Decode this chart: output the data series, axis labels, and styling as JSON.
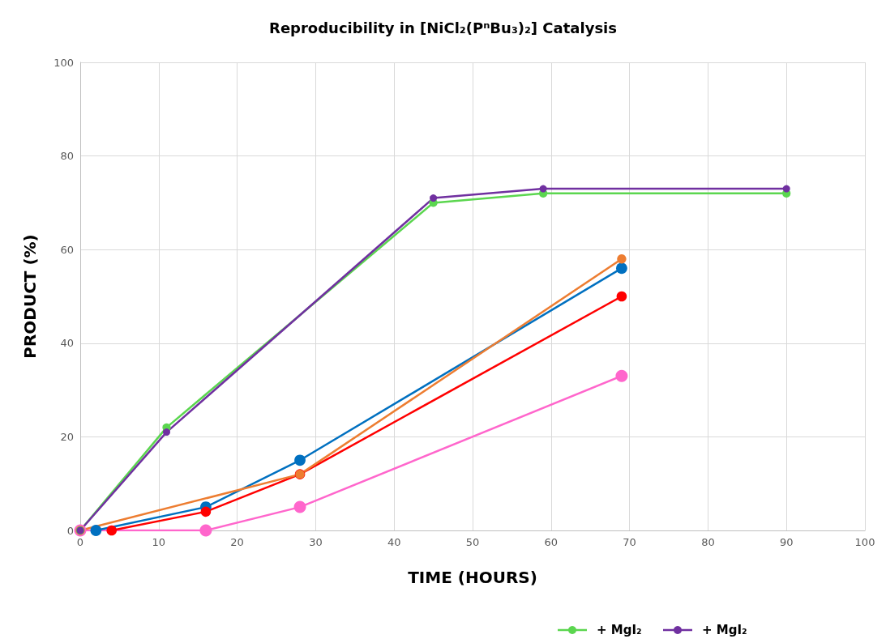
{
  "chart_data": {
    "type": "line",
    "title": "Reproducibility in [NiCl₂(PⁿBu₃)₂] Catalysis",
    "xlabel": "TIME (HOURS)",
    "ylabel": "PRODUCT (%)",
    "xlim": [
      0,
      100
    ],
    "xticks": [
      0,
      10,
      20,
      30,
      40,
      50,
      60,
      70,
      80,
      90,
      100
    ],
    "ylim": [
      0,
      100
    ],
    "yticks": [
      0,
      20,
      40,
      60,
      80,
      100
    ],
    "grid": true,
    "marker": "circle",
    "line_style": "solid",
    "legend": "bottom",
    "series": [
      {
        "color": "#ff66cc",
        "x": [
          0,
          16,
          28,
          69
        ],
        "values": [
          0,
          0,
          5,
          33
        ]
      },
      {
        "color": "#0070c0",
        "x": [
          2,
          16,
          28,
          69
        ],
        "values": [
          0,
          5,
          15,
          56
        ]
      },
      {
        "color": "#ff0000",
        "x": [
          4,
          16,
          28,
          69
        ],
        "values": [
          0,
          4,
          12,
          50
        ]
      },
      {
        "color": "#ed7d31",
        "x": [
          0,
          28,
          69
        ],
        "values": [
          0,
          12,
          58
        ]
      },
      {
        "name": "+ MgI₂",
        "color": "#5bd64f",
        "x": [
          0,
          11,
          45,
          59,
          90
        ],
        "values": [
          0,
          22,
          70,
          72,
          72
        ]
      },
      {
        "name": "+ MgI₂",
        "color": "#7030a0",
        "x": [
          0,
          11,
          45,
          59,
          90
        ],
        "values": [
          0,
          21,
          71,
          73,
          73
        ]
      }
    ]
  }
}
